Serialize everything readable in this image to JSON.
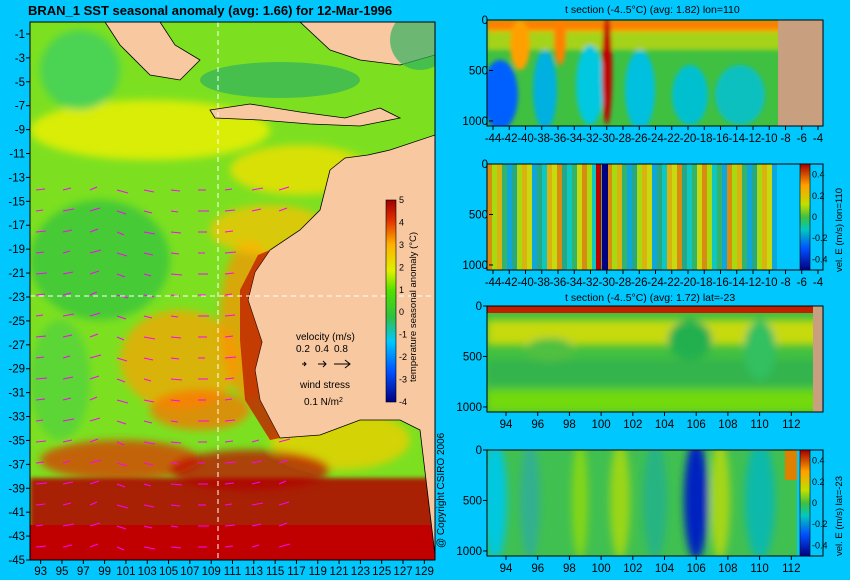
{
  "header": {
    "main_title": "BRAN_1  SST seasonal anomaly  (avg: 1.66) for 12-Mar-1996",
    "copyright": "@ Copyright CSIRO 2006"
  },
  "colors": {
    "background": "#00c8ff",
    "land": "#f8c8a0",
    "section_land": "#c8a080",
    "vector_arrows": "#ff00ff"
  },
  "chart_data": [
    {
      "id": "map",
      "type": "heatmap",
      "title": "BRAN_1  SST seasonal anomaly  (avg: 1.66) for 12-Mar-1996",
      "x_ticks": [
        "93",
        "95",
        "97",
        "99",
        "101",
        "103",
        "105",
        "107",
        "109",
        "111",
        "113",
        "115",
        "117",
        "119",
        "121",
        "123",
        "125",
        "127",
        "129"
      ],
      "y_ticks": [
        "-1",
        "-3",
        "-5",
        "-7",
        "-9",
        "-11",
        "-13",
        "-15",
        "-17",
        "-19",
        "-21",
        "-23",
        "-25",
        "-27",
        "-29",
        "-31",
        "-33",
        "-35",
        "-37",
        "-39",
        "-41",
        "-43",
        "-45"
      ],
      "xlim": [
        92,
        130
      ],
      "ylim": [
        -45,
        0
      ],
      "crosshair": {
        "lon": 110,
        "lat": -23
      },
      "colorbar": {
        "label": "temperature seasonal anomaly (°C)",
        "range": [
          -4,
          5
        ],
        "ticks": [
          "5",
          "4",
          "3",
          "2",
          "1",
          "0",
          "-1",
          "-2",
          "-3",
          "-4"
        ]
      },
      "legend": {
        "velocity_label": "velocity (m/s)",
        "velocity_scales": [
          "0.2",
          "0.4",
          "0.8"
        ],
        "wind_label": "wind stress",
        "wind_value": "0.1 N/m",
        "wind_exponent": "2"
      }
    },
    {
      "id": "t_lon",
      "type": "heatmap",
      "title": "t section (-4..5°C)  (avg: 1.82) lon=110",
      "x_ticks": [
        "-44",
        "-42",
        "-40",
        "-38",
        "-36",
        "-34",
        "-32",
        "-30",
        "-28",
        "-26",
        "-24",
        "-22",
        "-20",
        "-18",
        "-16",
        "-14",
        "-12",
        "-10",
        "-8",
        "-6",
        "-4"
      ],
      "y_ticks": [
        "0",
        "500",
        "1000"
      ],
      "ylim": [
        1050,
        0
      ],
      "land_from_x": -7.5
    },
    {
      "id": "v_lon",
      "type": "heatmap",
      "colorbar_label": "vel. E (m/s) lon=110",
      "colorbar_ticks": [
        "0.4",
        "0.2",
        "0",
        "-0.2",
        "-0.4"
      ],
      "x_ticks": [
        "-44",
        "-42",
        "-40",
        "-38",
        "-36",
        "-34",
        "-32",
        "-30",
        "-28",
        "-26",
        "-24",
        "-22",
        "-20",
        "-18",
        "-16",
        "-14",
        "-12",
        "-10",
        "-8",
        "-6",
        "-4"
      ],
      "y_ticks": [
        "0",
        "500",
        "1000"
      ],
      "ylim": [
        1050,
        0
      ]
    },
    {
      "id": "t_lat",
      "type": "heatmap",
      "title": "t section (-4..5°C)  (avg: 1.72) lat=-23",
      "x_ticks": [
        "94",
        "96",
        "98",
        "100",
        "102",
        "104",
        "106",
        "108",
        "110",
        "112"
      ],
      "y_ticks": [
        "0",
        "500",
        "1000"
      ],
      "ylim": [
        1050,
        0
      ],
      "land_from_x": 113.7
    },
    {
      "id": "v_lat",
      "type": "heatmap",
      "colorbar_label": "vel. E (m/s) lat=-23",
      "colorbar_ticks": [
        "0.4",
        "0.2",
        "0",
        "-0.2",
        "-0.4"
      ],
      "x_ticks": [
        "94",
        "96",
        "98",
        "100",
        "102",
        "104",
        "106",
        "108",
        "110",
        "112"
      ],
      "y_ticks": [
        "0",
        "500",
        "1000"
      ],
      "ylim": [
        1050,
        0
      ]
    }
  ]
}
